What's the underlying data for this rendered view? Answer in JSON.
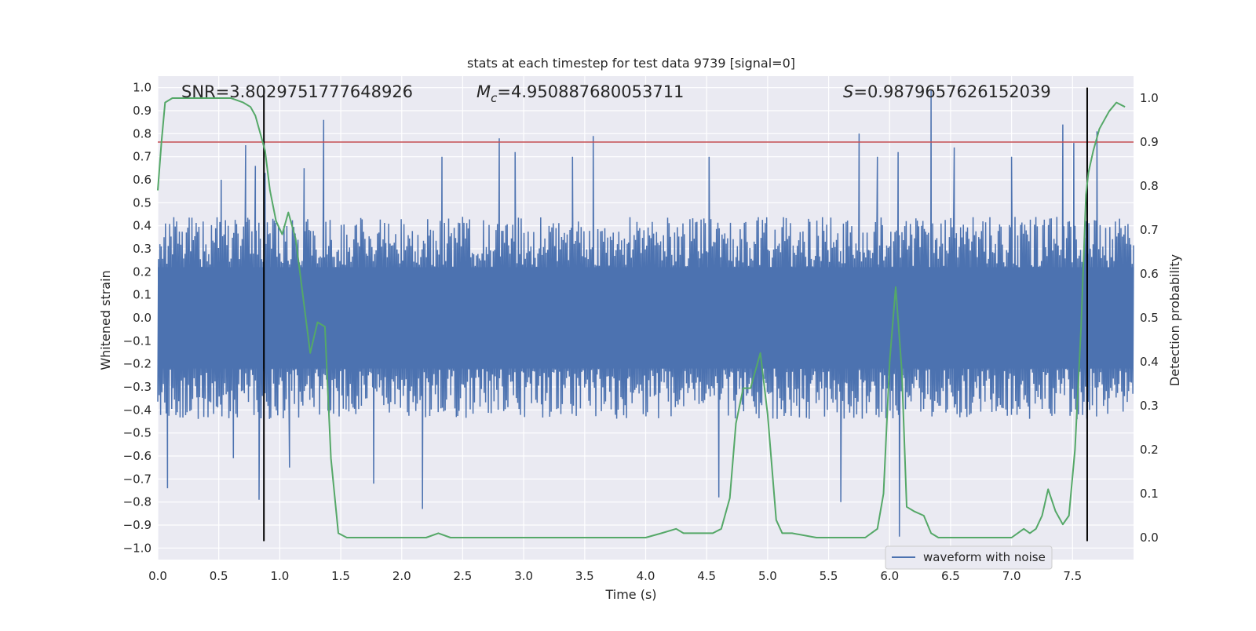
{
  "chart_data": {
    "type": "line",
    "title": "stats at each timestep for test data 9739 [signal=0]",
    "xlabel": "Time (s)",
    "ylabel_left": "Whitened strain",
    "ylabel_right": "Detection probability",
    "xlim": [
      0,
      8
    ],
    "ylim_left": [
      -1.05,
      1.05
    ],
    "ylim_right": [
      -0.05,
      1.05
    ],
    "x_ticks": [
      0.0,
      0.5,
      1.0,
      1.5,
      2.0,
      2.5,
      3.0,
      3.5,
      4.0,
      4.5,
      5.0,
      5.5,
      6.0,
      6.5,
      7.0,
      7.5
    ],
    "x_tick_labels": [
      "0.0",
      "0.5",
      "1.0",
      "1.5",
      "2.0",
      "2.5",
      "3.0",
      "3.5",
      "4.0",
      "4.5",
      "5.0",
      "5.5",
      "6.0",
      "6.5",
      "7.0",
      "7.5"
    ],
    "y_left_ticks": [
      1.0,
      0.9,
      0.8,
      0.7,
      0.6,
      0.5,
      0.4,
      0.3,
      0.2,
      0.1,
      0.0,
      -0.1,
      -0.2,
      -0.3,
      -0.4,
      -0.5,
      -0.6,
      -0.7,
      -0.8,
      -0.9,
      -1.0
    ],
    "y_left_tick_labels": [
      "1.0",
      "0.9",
      "0.8",
      "0.7",
      "0.6",
      "0.5",
      "0.4",
      "0.3",
      "0.2",
      "0.1",
      "0.0",
      "−0.1",
      "−0.2",
      "−0.3",
      "−0.4",
      "−0.5",
      "−0.6",
      "−0.7",
      "−0.8",
      "−0.9",
      "−1.0"
    ],
    "y_right_ticks": [
      1.0,
      0.9,
      0.8,
      0.7,
      0.6,
      0.5,
      0.4,
      0.3,
      0.2,
      0.1,
      0.0
    ],
    "y_right_tick_labels": [
      "1.0",
      "0.9",
      "0.8",
      "0.7",
      "0.6",
      "0.5",
      "0.4",
      "0.3",
      "0.2",
      "0.1",
      "0.0"
    ],
    "grid": true,
    "annotations": {
      "snr": "SNR=3.8029751777648926",
      "mc_symbol": "M",
      "mc_subscript": "c",
      "mc_value": "=4.950887680053711",
      "s_symbol": "S",
      "s_value": "=0.9879657626152039"
    },
    "legend": {
      "placement": "lower-right",
      "entries": [
        "waveform with noise"
      ]
    },
    "threshold": {
      "axis": "right",
      "value": 0.9,
      "color": "#c44e52"
    },
    "vertical_lines": [
      0.87,
      7.62
    ],
    "waveform": {
      "name": "waveform with noise",
      "color": "#4c72b0",
      "sample_count": 1400,
      "envelope_upper": 0.4,
      "envelope_lower": -0.4,
      "peaks": [
        [
          0.08,
          -0.74
        ],
        [
          0.52,
          0.6
        ],
        [
          0.62,
          -0.61
        ],
        [
          0.72,
          0.75
        ],
        [
          0.8,
          0.66
        ],
        [
          0.83,
          -0.79
        ],
        [
          0.88,
          0.63
        ],
        [
          1.08,
          -0.65
        ],
        [
          1.2,
          0.65
        ],
        [
          1.36,
          0.86
        ],
        [
          1.77,
          -0.72
        ],
        [
          2.17,
          -0.83
        ],
        [
          2.33,
          0.7
        ],
        [
          2.8,
          0.78
        ],
        [
          2.93,
          0.72
        ],
        [
          3.4,
          0.7
        ],
        [
          3.57,
          0.79
        ],
        [
          4.52,
          0.7
        ],
        [
          4.6,
          -0.78
        ],
        [
          5.6,
          -0.8
        ],
        [
          5.75,
          0.8
        ],
        [
          5.9,
          0.7
        ],
        [
          6.07,
          0.72
        ],
        [
          6.08,
          -0.95
        ],
        [
          6.34,
          0.99
        ],
        [
          6.53,
          0.74
        ],
        [
          7.0,
          0.7
        ],
        [
          7.42,
          0.84
        ],
        [
          7.51,
          0.76
        ],
        [
          7.7,
          0.81
        ]
      ]
    },
    "detection_probability": {
      "color": "#55a868",
      "x": [
        0.0,
        0.03,
        0.06,
        0.12,
        0.2,
        0.3,
        0.4,
        0.5,
        0.6,
        0.7,
        0.76,
        0.8,
        0.85,
        0.88,
        0.92,
        0.97,
        1.02,
        1.07,
        1.13,
        1.19,
        1.25,
        1.31,
        1.37,
        1.42,
        1.48,
        1.55,
        1.65,
        1.8,
        1.95,
        2.1,
        2.2,
        2.3,
        2.4,
        2.5,
        2.8,
        3.1,
        3.4,
        3.7,
        4.0,
        4.13,
        4.25,
        4.31,
        4.4,
        4.55,
        4.62,
        4.69,
        4.74,
        4.8,
        4.86,
        4.94,
        5.0,
        5.07,
        5.12,
        5.2,
        5.4,
        5.5,
        5.7,
        5.8,
        5.85,
        5.9,
        5.95,
        6.0,
        6.05,
        6.1,
        6.14,
        6.2,
        6.28,
        6.34,
        6.4,
        6.5,
        6.7,
        6.9,
        7.0,
        7.05,
        7.1,
        7.15,
        7.2,
        7.25,
        7.3,
        7.36,
        7.42,
        7.47,
        7.52,
        7.57,
        7.61,
        7.63,
        7.67,
        7.72,
        7.8,
        7.86,
        7.93
      ],
      "y": [
        0.79,
        0.9,
        0.99,
        1.0,
        1.0,
        1.0,
        1.0,
        1.0,
        1.0,
        0.99,
        0.98,
        0.96,
        0.91,
        0.88,
        0.79,
        0.72,
        0.69,
        0.74,
        0.68,
        0.55,
        0.42,
        0.49,
        0.48,
        0.18,
        0.01,
        0.0,
        0.0,
        0.0,
        0.0,
        0.0,
        0.0,
        0.01,
        0.0,
        0.0,
        0.0,
        0.0,
        0.0,
        0.0,
        0.0,
        0.01,
        0.02,
        0.01,
        0.01,
        0.01,
        0.02,
        0.09,
        0.26,
        0.34,
        0.34,
        0.42,
        0.28,
        0.04,
        0.01,
        0.01,
        0.0,
        0.0,
        0.0,
        0.0,
        0.01,
        0.02,
        0.1,
        0.4,
        0.57,
        0.38,
        0.07,
        0.06,
        0.05,
        0.01,
        0.0,
        0.0,
        0.0,
        0.0,
        0.0,
        0.01,
        0.02,
        0.01,
        0.02,
        0.05,
        0.11,
        0.06,
        0.03,
        0.05,
        0.2,
        0.48,
        0.78,
        0.83,
        0.88,
        0.93,
        0.97,
        0.99,
        0.98
      ]
    }
  }
}
